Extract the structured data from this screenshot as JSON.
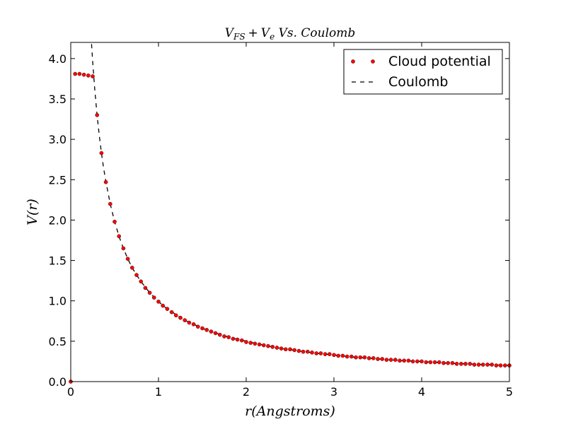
{
  "chart_data": {
    "type": "line",
    "title": "V_FS + V_e  Vs.  Coulomb",
    "title_parts": {
      "v1": "V",
      "s1": "FS",
      "plus": "+",
      "v2": "V",
      "s2": "e",
      "rest": " Vs.  Coulomb"
    },
    "xlabel": "r(Angstroms)",
    "ylabel": "V(r)",
    "xlim": [
      0,
      5
    ],
    "ylim": [
      0,
      4.2
    ],
    "xticks": [
      0,
      1,
      2,
      3,
      4,
      5
    ],
    "xtick_labels": [
      "0",
      "1",
      "2",
      "3",
      "4",
      "5"
    ],
    "yticks": [
      0.0,
      0.5,
      1.0,
      1.5,
      2.0,
      2.5,
      3.0,
      3.5,
      4.0
    ],
    "ytick_labels": [
      "0.0",
      "0.5",
      "1.0",
      "1.5",
      "2.0",
      "2.5",
      "3.0",
      "3.5",
      "4.0"
    ],
    "grid": false,
    "legend_position": "top-right",
    "series": [
      {
        "name": "Cloud potential",
        "style": "dots",
        "color": "#ff0000",
        "x": [
          0.0,
          0.05,
          0.1,
          0.15,
          0.2,
          0.25,
          0.3,
          0.35,
          0.4,
          0.45,
          0.5,
          0.55,
          0.6,
          0.65,
          0.7,
          0.75,
          0.8,
          0.85,
          0.9,
          0.95,
          1.0,
          1.05,
          1.1,
          1.15,
          1.2,
          1.25,
          1.3,
          1.35,
          1.4,
          1.45,
          1.5,
          1.55,
          1.6,
          1.65,
          1.7,
          1.75,
          1.8,
          1.85,
          1.9,
          1.95,
          2.0,
          2.05,
          2.1,
          2.15,
          2.2,
          2.25,
          2.3,
          2.35,
          2.4,
          2.45,
          2.5,
          2.55,
          2.6,
          2.65,
          2.7,
          2.75,
          2.8,
          2.85,
          2.9,
          2.95,
          3.0,
          3.05,
          3.1,
          3.15,
          3.2,
          3.25,
          3.3,
          3.35,
          3.4,
          3.45,
          3.5,
          3.55,
          3.6,
          3.65,
          3.7,
          3.75,
          3.8,
          3.85,
          3.9,
          3.95,
          4.0,
          4.05,
          4.1,
          4.15,
          4.2,
          4.25,
          4.3,
          4.35,
          4.4,
          4.45,
          4.5,
          4.55,
          4.6,
          4.65,
          4.7,
          4.75,
          4.8,
          4.85,
          4.9,
          4.95,
          5.0
        ],
        "y": [
          0.0,
          3.81,
          3.81,
          3.8,
          3.79,
          3.78,
          3.3,
          2.83,
          2.47,
          2.2,
          1.98,
          1.8,
          1.65,
          1.52,
          1.41,
          1.32,
          1.24,
          1.16,
          1.1,
          1.04,
          0.99,
          0.94,
          0.9,
          0.86,
          0.82,
          0.79,
          0.76,
          0.73,
          0.71,
          0.68,
          0.66,
          0.64,
          0.62,
          0.6,
          0.58,
          0.56,
          0.55,
          0.53,
          0.52,
          0.51,
          0.49,
          0.48,
          0.47,
          0.46,
          0.45,
          0.44,
          0.43,
          0.42,
          0.41,
          0.4,
          0.4,
          0.39,
          0.38,
          0.37,
          0.37,
          0.36,
          0.35,
          0.35,
          0.34,
          0.34,
          0.33,
          0.32,
          0.32,
          0.31,
          0.31,
          0.3,
          0.3,
          0.3,
          0.29,
          0.29,
          0.28,
          0.28,
          0.27,
          0.27,
          0.27,
          0.26,
          0.26,
          0.26,
          0.25,
          0.25,
          0.25,
          0.24,
          0.24,
          0.24,
          0.24,
          0.23,
          0.23,
          0.23,
          0.22,
          0.22,
          0.22,
          0.22,
          0.21,
          0.21,
          0.21,
          0.21,
          0.21,
          0.2,
          0.2,
          0.2,
          0.2
        ]
      },
      {
        "name": "Coulomb",
        "style": "dashed",
        "color": "#000000",
        "x": [
          0.237,
          0.25,
          0.275,
          0.3,
          0.325,
          0.35,
          0.375,
          0.4,
          0.45,
          0.5,
          0.55,
          0.6,
          0.65,
          0.7,
          0.75,
          0.8,
          0.9,
          1.0,
          1.1,
          1.2,
          1.3,
          1.4,
          1.5,
          1.6,
          1.8,
          2.0,
          2.2,
          2.4,
          2.6,
          2.8,
          3.0,
          3.25,
          3.5,
          3.75,
          4.0,
          4.25,
          4.5,
          4.75,
          5.0
        ],
        "y": [
          4.18,
          3.96,
          3.6,
          3.3,
          3.05,
          2.83,
          2.64,
          2.48,
          2.2,
          1.98,
          1.8,
          1.65,
          1.52,
          1.41,
          1.32,
          1.24,
          1.1,
          0.99,
          0.9,
          0.83,
          0.76,
          0.71,
          0.66,
          0.62,
          0.55,
          0.5,
          0.45,
          0.41,
          0.38,
          0.35,
          0.33,
          0.3,
          0.28,
          0.26,
          0.25,
          0.23,
          0.22,
          0.21,
          0.2
        ]
      }
    ]
  }
}
